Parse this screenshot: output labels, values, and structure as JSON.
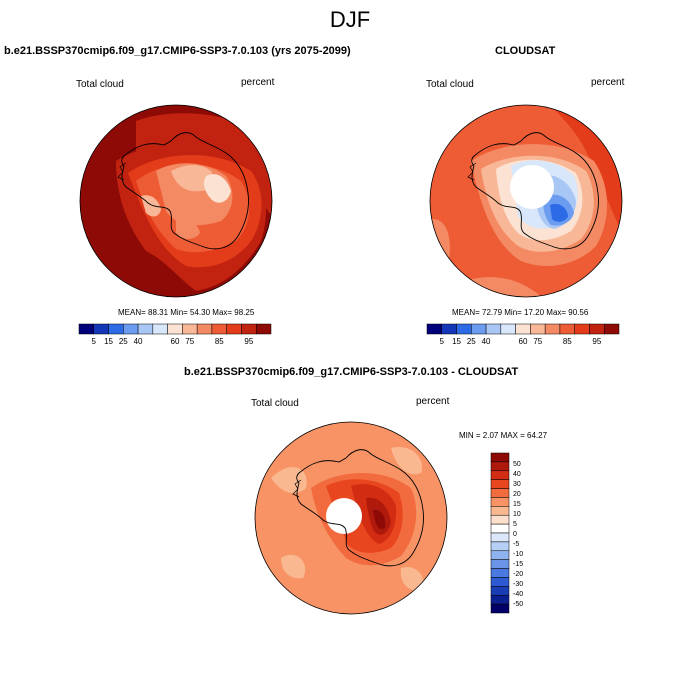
{
  "page": {
    "title": "DJF"
  },
  "panels": [
    {
      "id": "model",
      "title": "b.e21.BSSP370cmip6.f09_g17.CMIP6-SSP3-7.0.103 (yrs 2075-2099)",
      "left_label": "Total cloud",
      "right_label": "percent",
      "stats": "MEAN=  88.31  Min=  54.30  Max=  98.25",
      "colorbar": {
        "colors": [
          "#00007a",
          "#1437b8",
          "#2d6ae6",
          "#6b9cf0",
          "#a9c7f5",
          "#d9e7fa",
          "#fbe2d2",
          "#f8b796",
          "#f48a63",
          "#ee5c36",
          "#e23c1a",
          "#c22310",
          "#8e0a06"
        ],
        "labels": [
          "5",
          "15",
          "25",
          "40",
          "60",
          "75",
          "85",
          "95"
        ]
      }
    },
    {
      "id": "cloudsat",
      "title": "CLOUDSAT",
      "left_label": "Total cloud",
      "right_label": "percent",
      "stats": "MEAN=  72.79  Min=  17.20  Max=  90.56",
      "colorbar": {
        "colors": [
          "#00007a",
          "#1437b8",
          "#2d6ae6",
          "#6b9cf0",
          "#a9c7f5",
          "#d9e7fa",
          "#fbe2d2",
          "#f8b796",
          "#f48a63",
          "#ee5c36",
          "#e23c1a",
          "#c22310",
          "#8e0a06"
        ],
        "labels": [
          "5",
          "15",
          "25",
          "40",
          "60",
          "75",
          "85",
          "95"
        ]
      }
    },
    {
      "id": "diff",
      "title": "b.e21.BSSP370cmip6.f09_g17.CMIP6-SSP3-7.0.103 - CLOUDSAT",
      "left_label": "Total cloud",
      "right_label": "percent",
      "stats": "MIN =  2.07 MAX =  64.27",
      "colorbar": {
        "colors": [
          "#8e0a06",
          "#b01a0c",
          "#d22c12",
          "#e8461f",
          "#f26b3f",
          "#f79365",
          "#fab890",
          "#fde0cc",
          "#ffffff",
          "#dbe8fb",
          "#b6cff5",
          "#8fb3ef",
          "#6a94e8",
          "#4a78e0",
          "#2d5ad3",
          "#1a3cb4",
          "#0b2090",
          "#000068"
        ],
        "labels": [
          "50",
          "40",
          "30",
          "20",
          "15",
          "10",
          "5",
          "0",
          "-5",
          "-10",
          "-15",
          "-20",
          "-30",
          "-40",
          "-50"
        ]
      }
    }
  ],
  "chart_data": [
    {
      "type": "heatmap",
      "title": "b.e21.BSSP370cmip6.f09_g17.CMIP6-SSP3-7.0.103 (yrs 2075-2099)",
      "variable": "Total cloud",
      "units": "percent",
      "projection": "south polar stereographic",
      "mean": 88.31,
      "min": 54.3,
      "max": 98.25,
      "levels": [
        5,
        15,
        25,
        40,
        60,
        75,
        85,
        95
      ]
    },
    {
      "type": "heatmap",
      "title": "CLOUDSAT",
      "variable": "Total cloud",
      "units": "percent",
      "projection": "south polar stereographic",
      "mean": 72.79,
      "min": 17.2,
      "max": 90.56,
      "levels": [
        5,
        15,
        25,
        40,
        60,
        75,
        85,
        95
      ]
    },
    {
      "type": "heatmap",
      "title": "b.e21.BSSP370cmip6.f09_g17.CMIP6-SSP3-7.0.103 - CLOUDSAT",
      "variable": "Total cloud",
      "units": "percent",
      "projection": "south polar stereographic",
      "min": 2.07,
      "max": 64.27,
      "levels": [
        50,
        40,
        30,
        20,
        15,
        10,
        5,
        0,
        -5,
        -10,
        -15,
        -20,
        -30,
        -40,
        -50
      ]
    }
  ]
}
